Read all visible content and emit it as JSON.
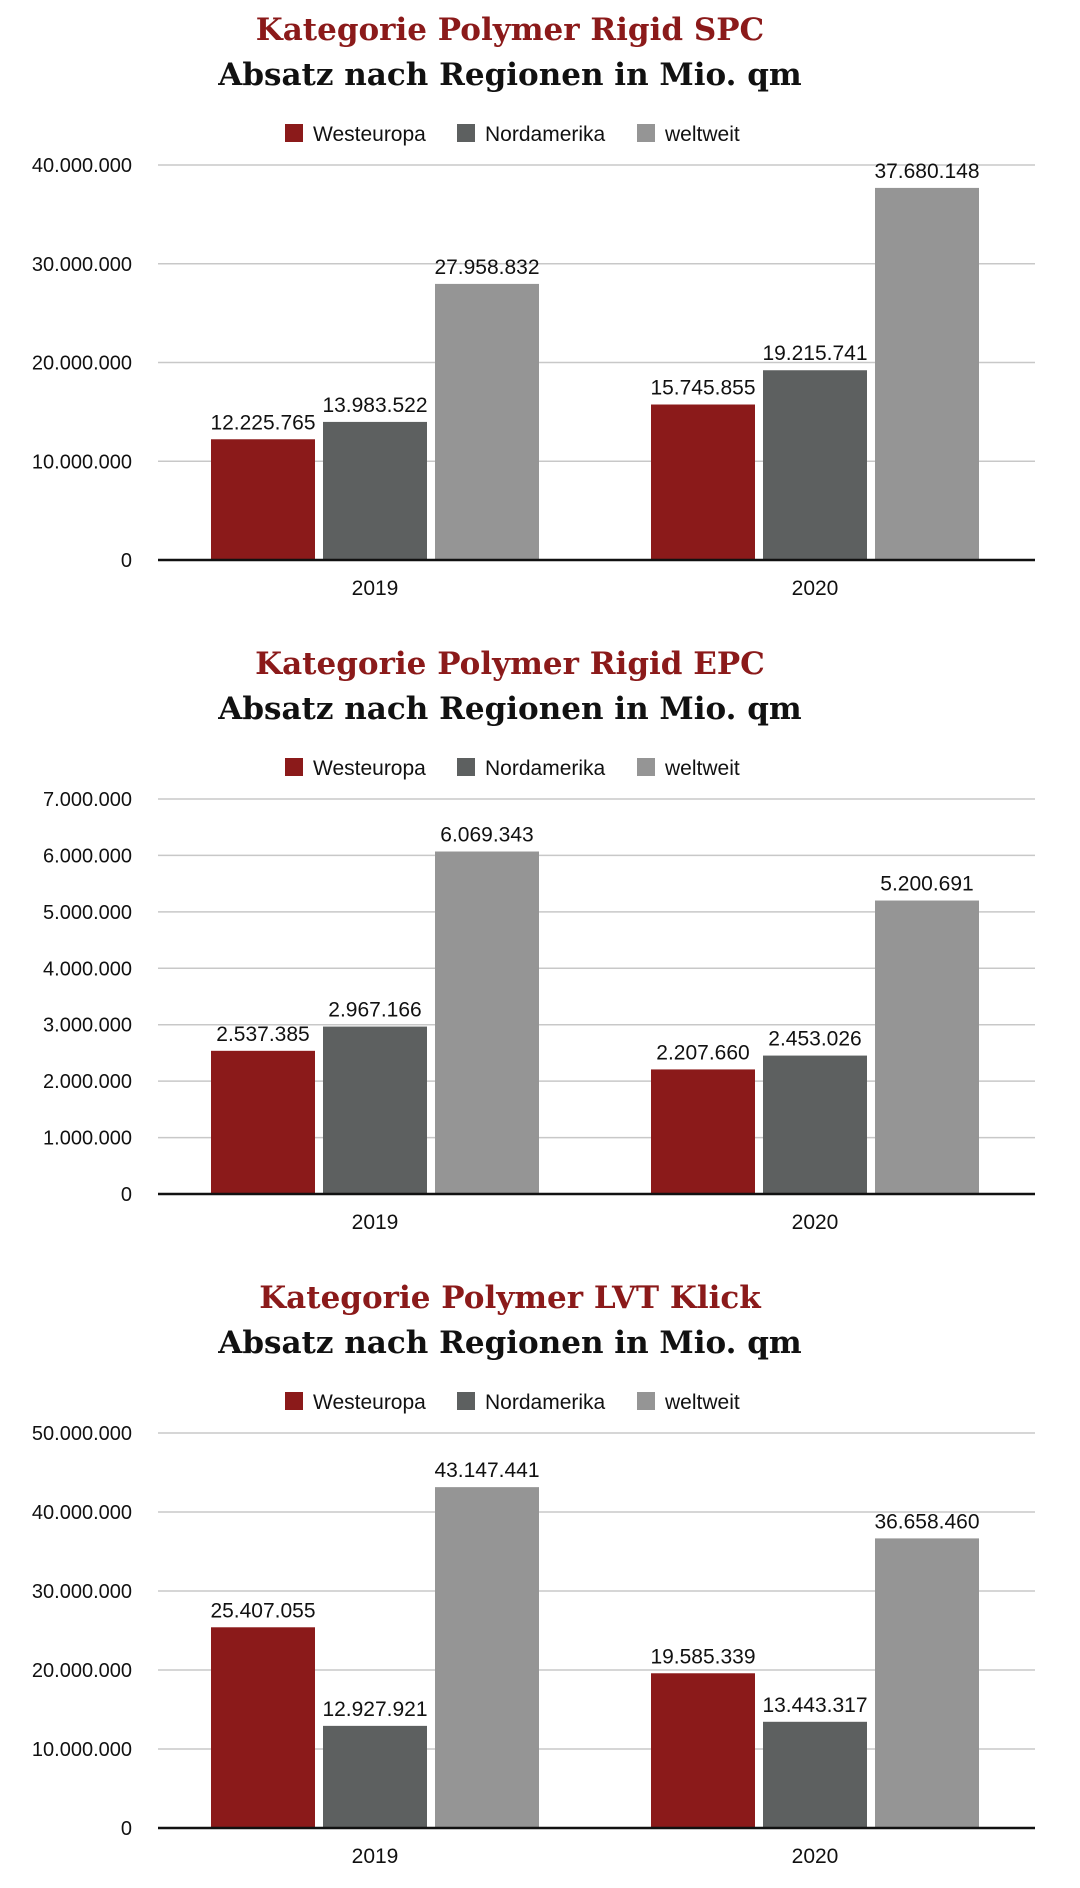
{
  "colors": {
    "westeuropa": "#8b1a1a",
    "nordamerika": "#5d6060",
    "weltweit": "#959595",
    "title_accent": "#8b1a1a"
  },
  "chart_data": [
    {
      "type": "bar",
      "title": "Kategorie Polymer Rigid SPC",
      "subtitle": "Absatz nach Regionen in Mio. qm",
      "categories": [
        "2019",
        "2020"
      ],
      "series": [
        {
          "name": "Westeuropa",
          "values": [
            12225765,
            15745855
          ],
          "labels": [
            "12.225.765",
            "15.745.855"
          ]
        },
        {
          "name": "Nordamerika",
          "values": [
            13983522,
            19215741
          ],
          "labels": [
            "13.983.522",
            "19.215.741"
          ]
        },
        {
          "name": "weltweit",
          "values": [
            27958832,
            37680148
          ],
          "labels": [
            "27.958.832",
            "37.680.148"
          ]
        }
      ],
      "ylim": [
        0,
        40000000
      ],
      "yticks": [
        0,
        10000000,
        20000000,
        30000000,
        40000000
      ],
      "ytick_labels": [
        "0",
        "10.000.000",
        "20.000.000",
        "30.000.000",
        "40.000.000"
      ],
      "legend_position": "top-center",
      "grid": true
    },
    {
      "type": "bar",
      "title": "Kategorie Polymer Rigid EPC",
      "subtitle": "Absatz nach Regionen in Mio. qm",
      "categories": [
        "2019",
        "2020"
      ],
      "series": [
        {
          "name": "Westeuropa",
          "values": [
            2537385,
            2207660
          ],
          "labels": [
            "2.537.385",
            "2.207.660"
          ]
        },
        {
          "name": "Nordamerika",
          "values": [
            2967166,
            2453026
          ],
          "labels": [
            "2.967.166",
            "2.453.026"
          ]
        },
        {
          "name": "weltweit",
          "values": [
            6069343,
            5200691
          ],
          "labels": [
            "6.069.343",
            "5.200.691"
          ]
        }
      ],
      "ylim": [
        0,
        7000000
      ],
      "yticks": [
        0,
        1000000,
        2000000,
        3000000,
        4000000,
        5000000,
        6000000,
        7000000
      ],
      "ytick_labels": [
        "0",
        "1.000.000",
        "2.000.000",
        "3.000.000",
        "4.000.000",
        "5.000.000",
        "6.000.000",
        "7.000.000"
      ],
      "legend_position": "top-center",
      "grid": true
    },
    {
      "type": "bar",
      "title": "Kategorie Polymer LVT Klick",
      "subtitle": "Absatz nach Regionen in Mio. qm",
      "categories": [
        "2019",
        "2020"
      ],
      "series": [
        {
          "name": "Westeuropa",
          "values": [
            25407055,
            19585339
          ],
          "labels": [
            "25.407.055",
            "19.585.339"
          ]
        },
        {
          "name": "Nordamerika",
          "values": [
            12927921,
            13443317
          ],
          "labels": [
            "12.927.921",
            "13.443.317"
          ]
        },
        {
          "name": "weltweit",
          "values": [
            43147441,
            36658460
          ],
          "labels": [
            "43.147.441",
            "36.658.460"
          ]
        }
      ],
      "ylim": [
        0,
        50000000
      ],
      "yticks": [
        0,
        10000000,
        20000000,
        30000000,
        40000000,
        50000000
      ],
      "ytick_labels": [
        "0",
        "10.000.000",
        "20.000.000",
        "30.000.000",
        "40.000.000",
        "50.000.000"
      ],
      "legend_position": "top-center",
      "grid": true
    }
  ]
}
